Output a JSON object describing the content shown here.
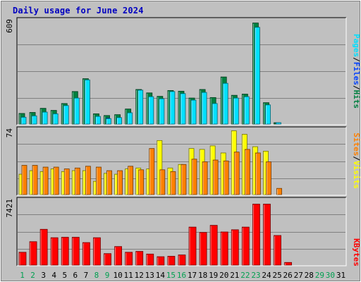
{
  "title": "Daily usage for June 2024",
  "colors": {
    "title": "#0000c0",
    "background": "#c0c0c0",
    "panel_bg": "#c0c0c0",
    "grid": "#808080",
    "hits": "#008040",
    "files": "#0040ff",
    "pages": "#00e0ff",
    "visits": "#ffff00",
    "sites": "#ff8000",
    "kbytes": "#ff0000",
    "weekend_day": "#00a050",
    "weekday": "#000000"
  },
  "legends": {
    "top": [
      "Pages",
      "/",
      "Files",
      "/",
      "Hits"
    ],
    "middle": [
      "Sites",
      "/",
      "Visits"
    ],
    "bottom": [
      "KBytes"
    ]
  },
  "chart_data": [
    {
      "type": "bar",
      "panel": "hits-files-pages",
      "ymax_label": "609",
      "ylim": [
        0,
        609
      ],
      "categories": [
        "1",
        "2",
        "3",
        "4",
        "5",
        "6",
        "7",
        "8",
        "9",
        "10",
        "11",
        "12",
        "13",
        "14",
        "15",
        "16",
        "17",
        "18",
        "19",
        "20",
        "21",
        "22",
        "23",
        "24",
        "25",
        "26",
        "27",
        "28",
        "29",
        "30",
        "31"
      ],
      "series": [
        {
          "name": "Hits",
          "values": [
            62,
            68,
            92,
            80,
            120,
            190,
            265,
            60,
            50,
            55,
            88,
            202,
            182,
            162,
            196,
            192,
            152,
            202,
            155,
            275,
            168,
            175,
            590,
            125,
            8,
            0,
            0,
            0,
            0,
            0,
            0
          ]
        },
        {
          "name": "Files",
          "values": [
            40,
            45,
            60,
            55,
            75,
            120,
            150,
            40,
            35,
            35,
            55,
            135,
            120,
            105,
            130,
            125,
            100,
            130,
            105,
            175,
            110,
            115,
            380,
            80,
            5,
            0,
            0,
            0,
            0,
            0,
            0
          ]
        },
        {
          "name": "Pages",
          "values": [
            40,
            48,
            70,
            60,
            108,
            152,
            258,
            45,
            32,
            38,
            66,
            198,
            160,
            148,
            190,
            178,
            140,
            185,
            120,
            238,
            152,
            160,
            565,
            112,
            5,
            0,
            0,
            0,
            0,
            0,
            0
          ]
        }
      ]
    },
    {
      "type": "bar",
      "panel": "visits-sites",
      "ymax_label": "74",
      "ylim": [
        0,
        74
      ],
      "categories": [
        "1",
        "2",
        "3",
        "4",
        "5",
        "6",
        "7",
        "8",
        "9",
        "10",
        "11",
        "12",
        "13",
        "14",
        "15",
        "16",
        "17",
        "18",
        "19",
        "20",
        "21",
        "22",
        "23",
        "24",
        "25",
        "26",
        "27",
        "28",
        "29",
        "30",
        "31"
      ],
      "series": [
        {
          "name": "Visits",
          "values": [
            23,
            27,
            26,
            29,
            26,
            27,
            27,
            15,
            24,
            23,
            29,
            30,
            29,
            61,
            30,
            34,
            52,
            51,
            55,
            47,
            72,
            68,
            54,
            49,
            0,
            0,
            0,
            0,
            0,
            0,
            0
          ]
        },
        {
          "name": "Sites",
          "values": [
            33,
            33,
            31,
            31,
            29,
            30,
            32,
            31,
            27,
            27,
            32,
            28,
            52,
            28,
            26,
            34,
            40,
            37,
            39,
            38,
            48,
            51,
            47,
            37,
            7,
            0,
            0,
            0,
            0,
            0,
            0
          ]
        }
      ]
    },
    {
      "type": "bar",
      "panel": "kbytes",
      "ymax_label": "7421",
      "ylim": [
        0,
        7421
      ],
      "categories": [
        "1",
        "2",
        "3",
        "4",
        "5",
        "6",
        "7",
        "8",
        "9",
        "10",
        "11",
        "12",
        "13",
        "14",
        "15",
        "16",
        "17",
        "18",
        "19",
        "20",
        "21",
        "22",
        "23",
        "24",
        "25",
        "26",
        "27",
        "28",
        "29",
        "30",
        "31"
      ],
      "series": [
        {
          "name": "KBytes",
          "values": [
            1450,
            2650,
            4050,
            3100,
            3150,
            3150,
            2550,
            3100,
            1300,
            2100,
            1450,
            1550,
            1250,
            950,
            1000,
            1150,
            4300,
            3700,
            4500,
            3750,
            4000,
            4300,
            6900,
            6900,
            3350,
            300,
            0,
            0,
            0,
            0,
            0
          ]
        }
      ]
    }
  ]
}
